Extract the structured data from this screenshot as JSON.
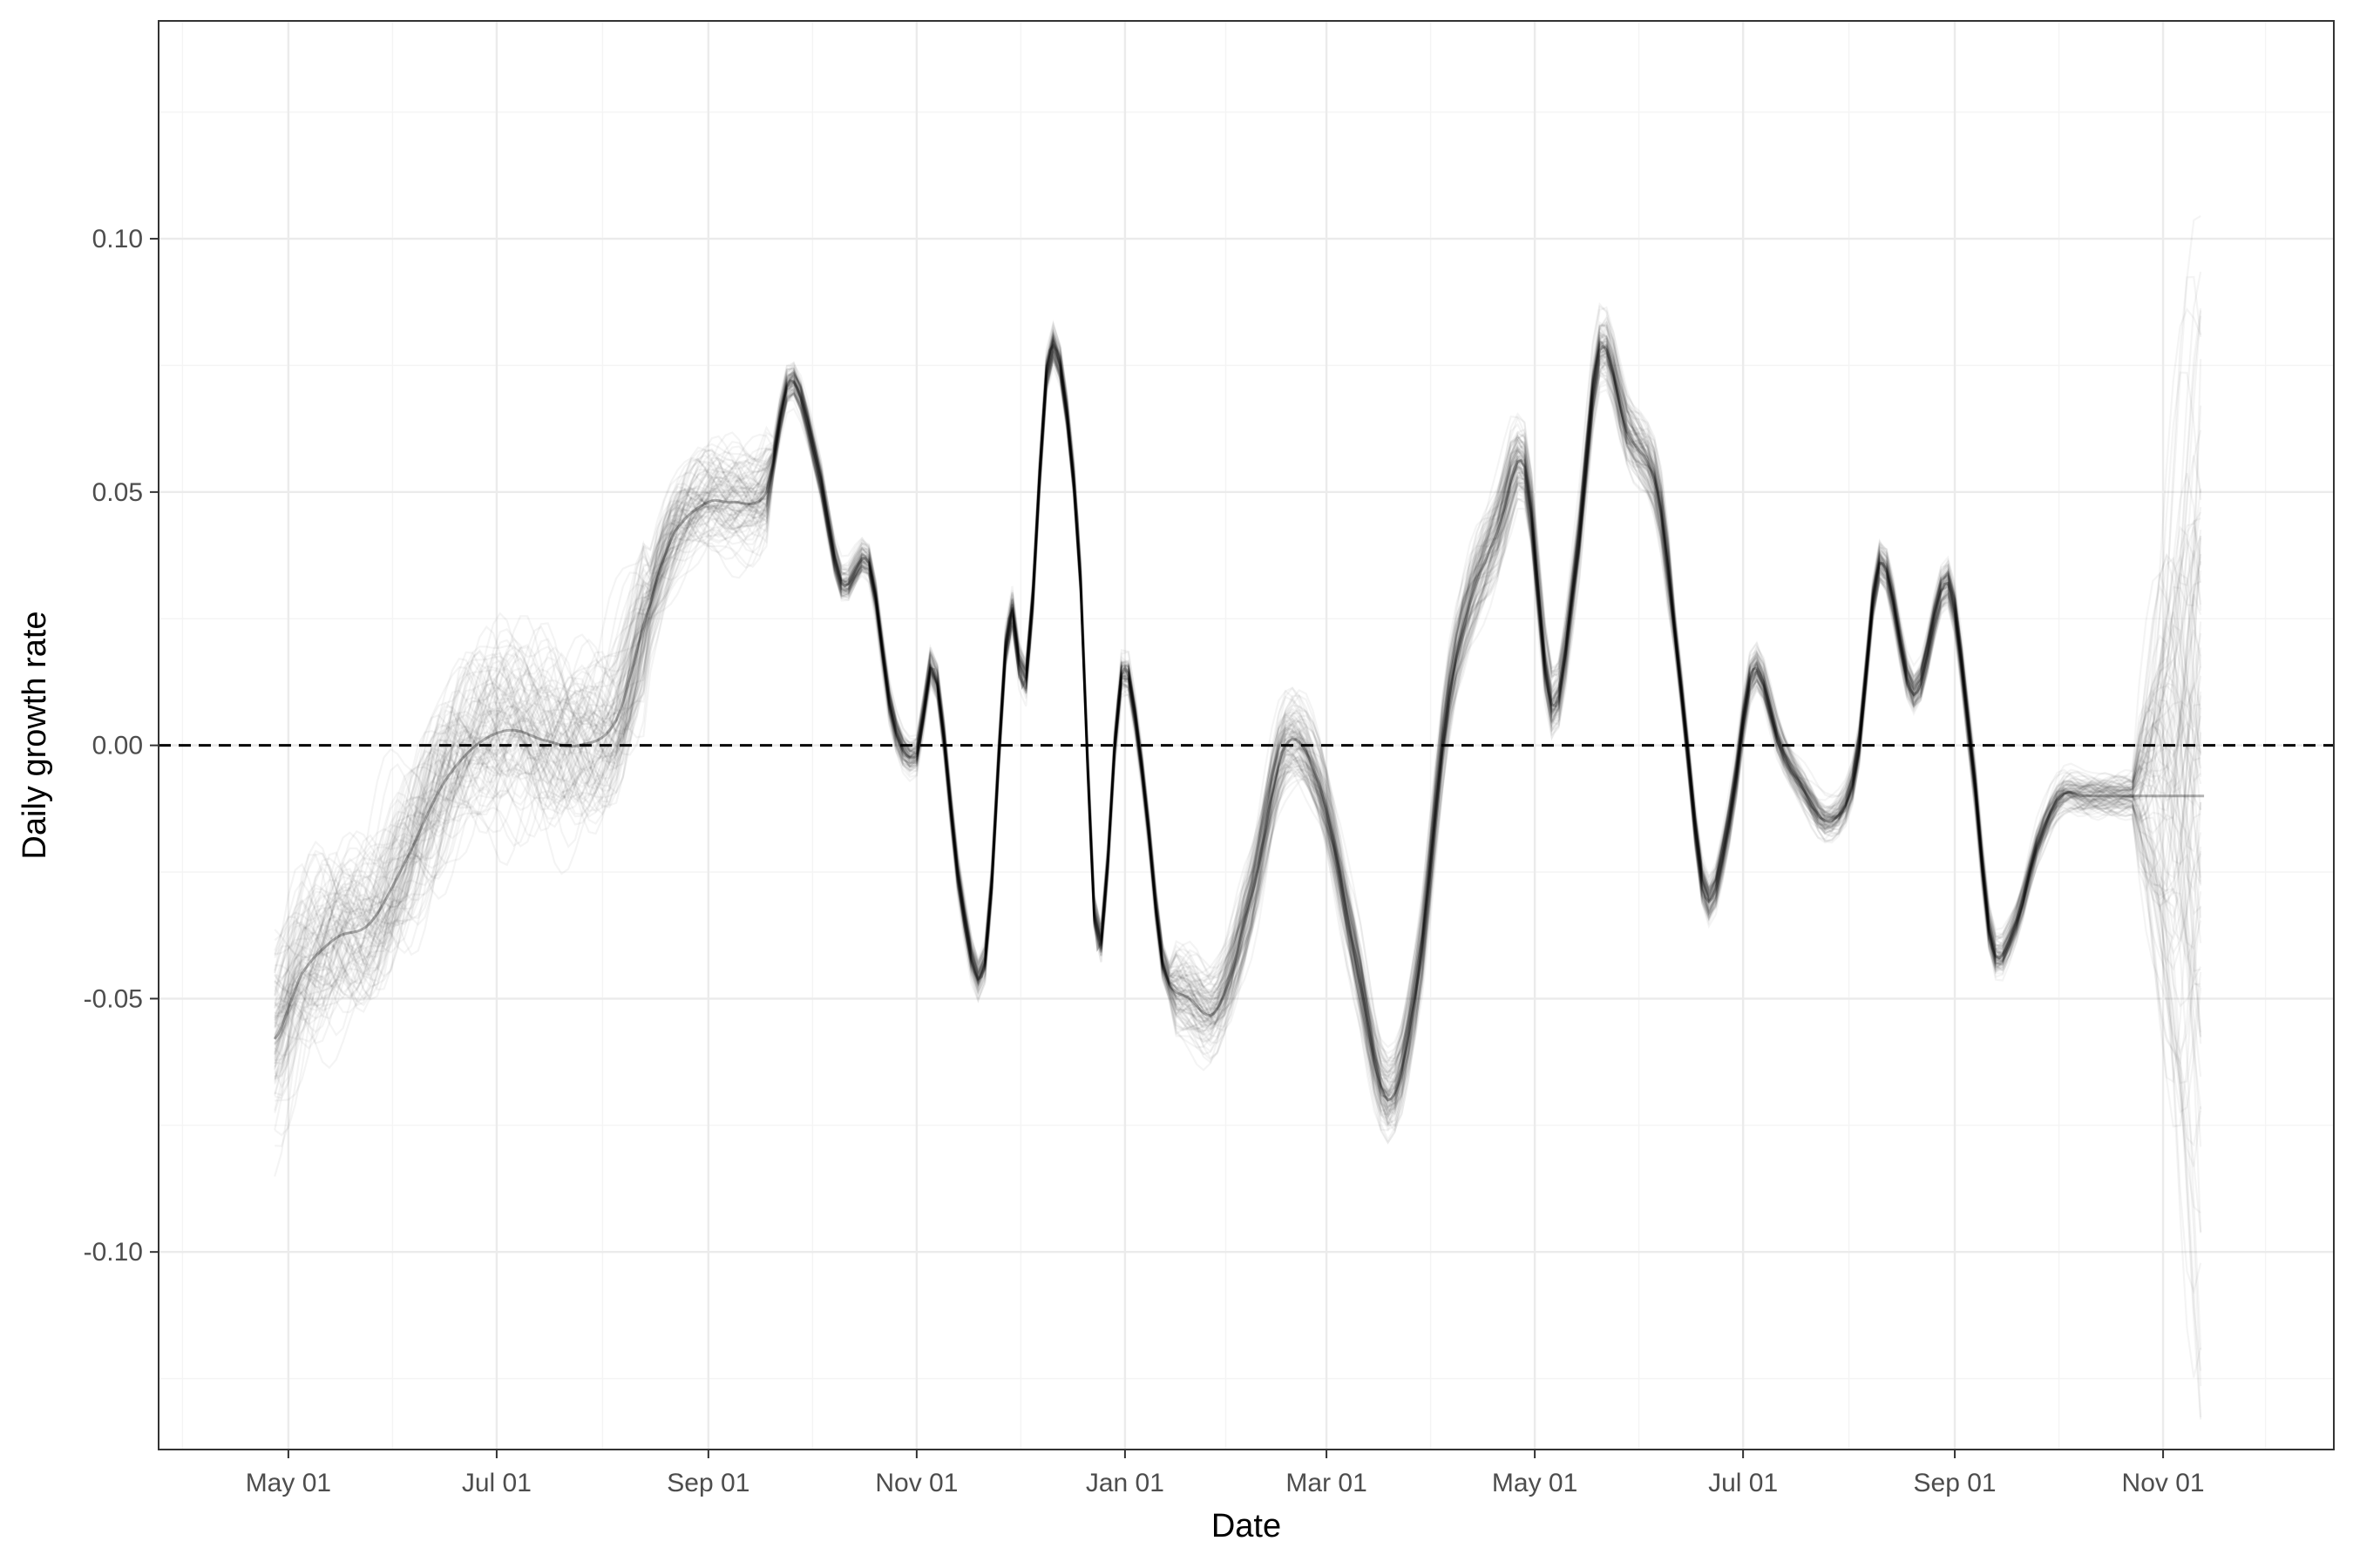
{
  "chart_data": {
    "type": "line",
    "xlabel": "Date",
    "ylabel": "Daily growth rate",
    "x_ticks": [
      "May 01",
      "Jul 01",
      "Sep 01",
      "Nov 01",
      "Jan 01",
      "Mar 01",
      "May 01",
      "Jul 01",
      "Sep 01",
      "Nov 01"
    ],
    "x_tick_dates": [
      "2020-05-01",
      "2020-07-01",
      "2020-09-01",
      "2020-11-01",
      "2021-01-01",
      "2021-03-01",
      "2021-05-01",
      "2021-07-01",
      "2021-09-01",
      "2021-11-01"
    ],
    "xlim": [
      "2020-03-24",
      "2021-12-21"
    ],
    "y_ticks": [
      "0.10",
      "0.05",
      "0.00",
      "-0.05",
      "-0.10"
    ],
    "y_tick_values": [
      0.1,
      0.05,
      0.0,
      -0.05,
      -0.1
    ],
    "ylim": [
      -0.139,
      0.143
    ],
    "reference_line": {
      "y": 0.0,
      "style": "dashed",
      "color": "#000000"
    },
    "grid": true,
    "legend": "none",
    "series_color": "#000000",
    "ensemble_size": 100,
    "median_series": {
      "x": [
        "2020-04-27",
        "2020-05-05",
        "2020-05-15",
        "2020-05-25",
        "2020-06-05",
        "2020-06-15",
        "2020-06-25",
        "2020-07-05",
        "2020-07-15",
        "2020-07-25",
        "2020-08-05",
        "2020-08-15",
        "2020-08-22",
        "2020-09-01",
        "2020-09-08",
        "2020-09-18",
        "2020-09-25",
        "2020-10-03",
        "2020-10-10",
        "2020-10-18",
        "2020-10-25",
        "2020-11-01",
        "2020-11-06",
        "2020-11-14",
        "2020-11-21",
        "2020-11-28",
        "2020-12-03",
        "2020-12-10",
        "2020-12-18",
        "2020-12-24",
        "2020-12-31",
        "2021-01-06",
        "2021-01-12",
        "2021-01-20",
        "2021-01-28",
        "2021-02-07",
        "2021-02-17",
        "2021-02-27",
        "2021-03-09",
        "2021-03-19",
        "2021-03-28",
        "2021-04-05",
        "2021-04-12",
        "2021-04-20",
        "2021-04-28",
        "2021-05-06",
        "2021-05-13",
        "2021-05-20",
        "2021-05-28",
        "2021-06-06",
        "2021-06-13",
        "2021-06-20",
        "2021-06-27",
        "2021-07-04",
        "2021-07-12",
        "2021-07-18",
        "2021-07-26",
        "2021-08-03",
        "2021-08-10",
        "2021-08-20",
        "2021-08-30",
        "2021-09-06",
        "2021-09-12",
        "2021-09-19",
        "2021-09-25",
        "2021-10-02",
        "2021-10-09",
        "2021-10-16",
        "2021-10-23",
        "2021-11-03",
        "2021-11-13"
      ],
      "y": [
        -0.058,
        -0.045,
        -0.038,
        -0.035,
        -0.022,
        -0.008,
        0.0,
        0.003,
        0.001,
        0.0,
        0.005,
        0.028,
        0.042,
        0.048,
        0.048,
        0.05,
        0.072,
        0.055,
        0.032,
        0.036,
        0.005,
        -0.002,
        0.015,
        -0.03,
        -0.043,
        0.025,
        0.013,
        0.078,
        0.045,
        -0.04,
        0.014,
        -0.005,
        -0.043,
        -0.05,
        -0.052,
        -0.03,
        0.0,
        -0.008,
        -0.04,
        -0.07,
        -0.045,
        0.005,
        0.028,
        0.042,
        0.055,
        0.008,
        0.035,
        0.078,
        0.062,
        0.05,
        0.01,
        -0.03,
        -0.015,
        0.015,
        0.0,
        -0.008,
        -0.015,
        -0.005,
        0.036,
        0.01,
        0.032,
        -0.002,
        -0.04,
        -0.035,
        -0.02,
        -0.01,
        -0.01,
        -0.01,
        -0.01,
        -0.01,
        -0.01
      ]
    }
  }
}
